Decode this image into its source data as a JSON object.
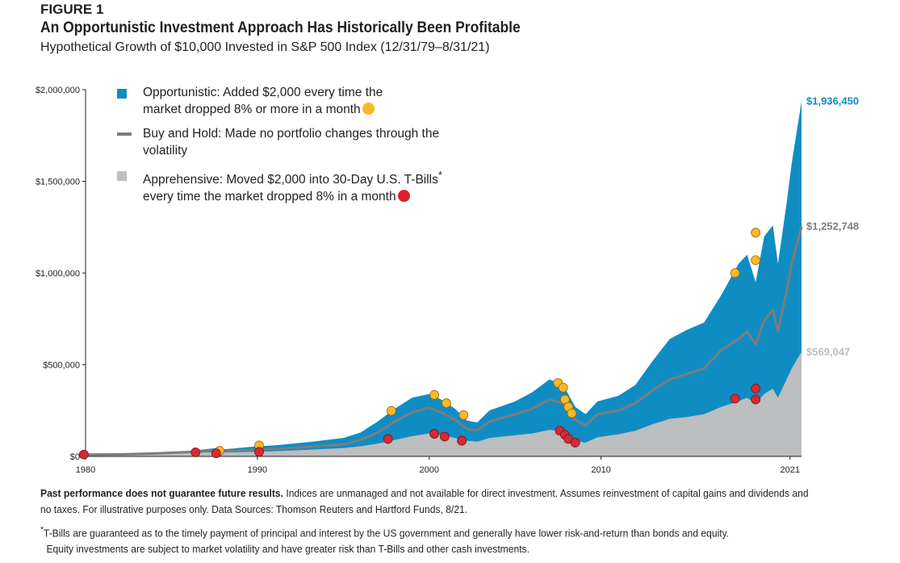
{
  "figure_label": "FIGURE 1",
  "title": "An Opportunistic Investment Approach Has Historically Been Profitable",
  "subtitle": "Hypothetical Growth of $10,000 Invested in S&P 500 Index (12/31/79–8/31/21)",
  "legend": {
    "opportunistic_line1": "Opportunistic: Added $2,000 every time the",
    "opportunistic_line2": "market dropped 8% or more in a month",
    "buyhold_line1": "Buy and Hold: Made no portfolio changes through the",
    "buyhold_line2": "volatility",
    "apprehensive_line1": "Apprehensive: Moved $2,000 into 30-Day U.S. T-Bills",
    "apprehensive_sup": "*",
    "apprehensive_line2": "every time the market dropped 8% in a month"
  },
  "footer": {
    "bold": "Past performance does not guarantee future results.",
    "text": " Indices are unmanaged and not available for direct investment. Assumes reinvestment of capital gains and dividends and no taxes. For illustrative purposes only. Data Sources: Thomson Reuters and Hartford Funds, 8/21.",
    "footnote_mark": "*",
    "footnote_line1": "T-Bills are guaranteed as to the timely payment of principal and interest by the US government and generally have lower risk-and-return than bonds and equity.",
    "footnote_line2": "Equity investments are subject to market volatility and have greater risk than T-Bills and other cash investments."
  },
  "colors": {
    "opportunistic": "#0f8dc3",
    "buy_and_hold": "#7b7c7e",
    "apprehensive": "#bcbec0",
    "yellow_marker": "#fbb827",
    "red_marker": "#d42a33"
  },
  "chart_data": {
    "type": "area",
    "xlim": [
      1980,
      2021.67
    ],
    "ylim": [
      0,
      2000000
    ],
    "yticks": [
      0,
      500000,
      1000000,
      1500000,
      2000000
    ],
    "ytick_labels": [
      "$0",
      "$500,000",
      "$1,000,000",
      "$1,500,000",
      "$2,000,000"
    ],
    "xticks": [
      1980,
      1990,
      2000,
      2010,
      2021
    ],
    "xtick_labels": [
      "1980",
      "1990",
      "2000",
      "2010",
      "2021"
    ],
    "grid": false,
    "legend_position": "top-left",
    "end_labels": [
      "$1,936,450",
      "$1,252,748",
      "$569,047"
    ],
    "series": [
      {
        "name": "Opportunistic",
        "color": "#0f8dc3",
        "points": [
          [
            1980,
            10000
          ],
          [
            1982,
            12000
          ],
          [
            1984,
            20000
          ],
          [
            1986,
            30000
          ],
          [
            1987.6,
            45000
          ],
          [
            1988,
            38000
          ],
          [
            1990,
            55000
          ],
          [
            1991,
            60000
          ],
          [
            1993,
            78000
          ],
          [
            1995,
            100000
          ],
          [
            1996,
            130000
          ],
          [
            1997,
            190000
          ],
          [
            1998,
            260000
          ],
          [
            1999,
            320000
          ],
          [
            2000,
            340000
          ],
          [
            2000.7,
            310000
          ],
          [
            2001.5,
            260000
          ],
          [
            2002.2,
            195000
          ],
          [
            2002.8,
            185000
          ],
          [
            2003.5,
            250000
          ],
          [
            2005,
            300000
          ],
          [
            2006,
            350000
          ],
          [
            2007,
            420000
          ],
          [
            2007.8,
            390000
          ],
          [
            2008.5,
            270000
          ],
          [
            2009.1,
            230000
          ],
          [
            2009.8,
            300000
          ],
          [
            2011,
            330000
          ],
          [
            2012,
            390000
          ],
          [
            2013,
            520000
          ],
          [
            2014,
            640000
          ],
          [
            2015,
            690000
          ],
          [
            2016,
            730000
          ],
          [
            2017,
            880000
          ],
          [
            2018,
            1050000
          ],
          [
            2018.5,
            1100000
          ],
          [
            2019,
            950000
          ],
          [
            2019.5,
            1200000
          ],
          [
            2020,
            1260000
          ],
          [
            2020.3,
            1050000
          ],
          [
            2020.8,
            1380000
          ],
          [
            2021.1,
            1600000
          ],
          [
            2021.67,
            1936450
          ]
        ]
      },
      {
        "name": "Buy and Hold",
        "color": "#7b7c7e",
        "points": [
          [
            1980,
            10000
          ],
          [
            1982,
            11000
          ],
          [
            1984,
            16000
          ],
          [
            1986,
            24000
          ],
          [
            1987.6,
            32000
          ],
          [
            1988,
            28000
          ],
          [
            1990,
            37000
          ],
          [
            1991,
            40000
          ],
          [
            1993,
            52000
          ],
          [
            1995,
            65000
          ],
          [
            1996,
            90000
          ],
          [
            1997,
            130000
          ],
          [
            1998,
            190000
          ],
          [
            1999,
            240000
          ],
          [
            2000,
            265000
          ],
          [
            2000.7,
            240000
          ],
          [
            2001.5,
            200000
          ],
          [
            2002.2,
            150000
          ],
          [
            2002.8,
            140000
          ],
          [
            2003.5,
            190000
          ],
          [
            2005,
            230000
          ],
          [
            2006,
            260000
          ],
          [
            2007,
            310000
          ],
          [
            2007.8,
            290000
          ],
          [
            2008.5,
            200000
          ],
          [
            2009.1,
            170000
          ],
          [
            2009.8,
            230000
          ],
          [
            2011,
            250000
          ],
          [
            2012,
            290000
          ],
          [
            2013,
            360000
          ],
          [
            2014,
            420000
          ],
          [
            2015,
            450000
          ],
          [
            2016,
            480000
          ],
          [
            2017,
            580000
          ],
          [
            2018,
            640000
          ],
          [
            2018.5,
            680000
          ],
          [
            2019,
            610000
          ],
          [
            2019.5,
            740000
          ],
          [
            2020,
            800000
          ],
          [
            2020.3,
            680000
          ],
          [
            2020.8,
            900000
          ],
          [
            2021.1,
            1050000
          ],
          [
            2021.67,
            1252748
          ]
        ]
      },
      {
        "name": "Apprehensive",
        "color": "#bcbec0",
        "points": [
          [
            1980,
            10000
          ],
          [
            1982,
            10500
          ],
          [
            1984,
            14000
          ],
          [
            1986,
            19000
          ],
          [
            1987.6,
            22000
          ],
          [
            1988,
            21000
          ],
          [
            1990,
            25000
          ],
          [
            1991,
            28000
          ],
          [
            1993,
            36000
          ],
          [
            1995,
            45000
          ],
          [
            1996,
            55000
          ],
          [
            1997,
            70000
          ],
          [
            1998,
            90000
          ],
          [
            1999,
            110000
          ],
          [
            2000,
            125000
          ],
          [
            2000.7,
            118000
          ],
          [
            2001.5,
            100000
          ],
          [
            2002.2,
            85000
          ],
          [
            2002.8,
            80000
          ],
          [
            2003.5,
            100000
          ],
          [
            2005,
            115000
          ],
          [
            2006,
            125000
          ],
          [
            2007,
            145000
          ],
          [
            2007.8,
            135000
          ],
          [
            2008.5,
            85000
          ],
          [
            2009.1,
            75000
          ],
          [
            2009.8,
            105000
          ],
          [
            2011,
            120000
          ],
          [
            2012,
            140000
          ],
          [
            2013,
            175000
          ],
          [
            2014,
            205000
          ],
          [
            2015,
            215000
          ],
          [
            2016,
            230000
          ],
          [
            2017,
            270000
          ],
          [
            2018,
            300000
          ],
          [
            2018.5,
            320000
          ],
          [
            2019,
            290000
          ],
          [
            2019.5,
            340000
          ],
          [
            2020,
            370000
          ],
          [
            2020.3,
            320000
          ],
          [
            2020.8,
            420000
          ],
          [
            2021.1,
            480000
          ],
          [
            2021.67,
            569047
          ]
        ]
      }
    ],
    "markers": {
      "opportunistic": [
        [
          1987.8,
          30000
        ],
        [
          1990.1,
          60000
        ],
        [
          1997.8,
          248000
        ],
        [
          2000.3,
          335000
        ],
        [
          2001,
          290000
        ],
        [
          2002,
          225000
        ],
        [
          2007.5,
          400000
        ],
        [
          2007.8,
          375000
        ],
        [
          2007.9,
          310000
        ],
        [
          2008.1,
          270000
        ],
        [
          2008.3,
          235000
        ],
        [
          2017.8,
          1000000
        ],
        [
          2019,
          1070000
        ],
        [
          2019,
          1220000
        ]
      ],
      "apprehensive": [
        [
          1979.9,
          10000
        ],
        [
          1986.4,
          22000
        ],
        [
          1987.6,
          17000
        ],
        [
          1990.1,
          25000
        ],
        [
          1997.6,
          95000
        ],
        [
          2000.3,
          123000
        ],
        [
          2000.9,
          108000
        ],
        [
          2001.9,
          85000
        ],
        [
          2007.6,
          140000
        ],
        [
          2007.9,
          118000
        ],
        [
          2008.1,
          95000
        ],
        [
          2008.5,
          75000
        ],
        [
          2017.8,
          315000
        ],
        [
          2019,
          310000
        ],
        [
          2019,
          370000
        ]
      ]
    }
  }
}
